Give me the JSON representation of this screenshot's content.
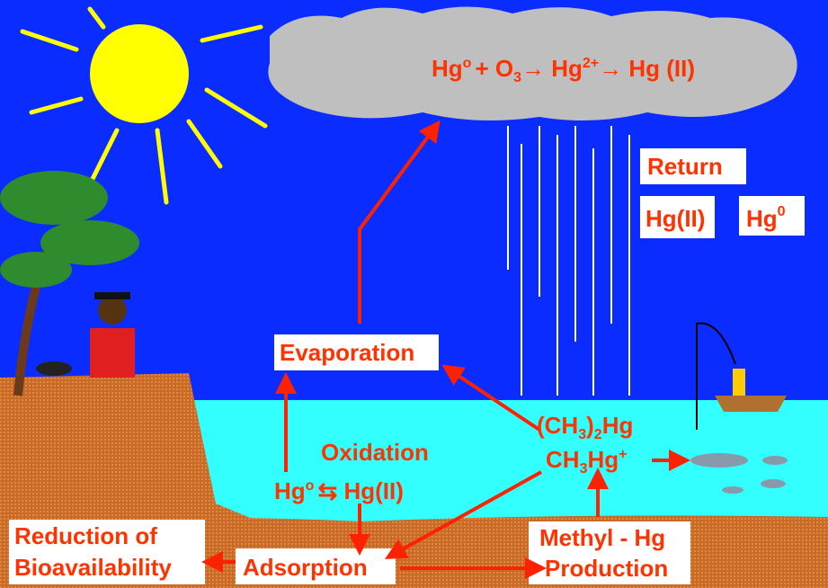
{
  "cloud_equation": {
    "parts": [
      "Hg",
      "o",
      "+ O",
      "3",
      "→ Hg",
      "2+",
      "→ Hg (II)"
    ]
  },
  "return_label": "Return",
  "return_hg2": "Hg(II)",
  "return_hg0": {
    "base": "Hg",
    "sup": "0"
  },
  "evaporation": "Evaporation",
  "dimethyl": {
    "parts": [
      "(CH",
      "3",
      ")",
      "2",
      "Hg"
    ]
  },
  "methyl": {
    "parts": [
      "CH",
      "3",
      "Hg",
      "+"
    ]
  },
  "oxidation": "Oxidation",
  "redox": {
    "parts": [
      "Hg",
      "o",
      "⇆ Hg(II)"
    ]
  },
  "reduction": [
    "Reduction of",
    "Bioavailability"
  ],
  "adsorption": "Adsorption",
  "methyl_production": [
    "Methyl - Hg",
    "Production"
  ]
}
